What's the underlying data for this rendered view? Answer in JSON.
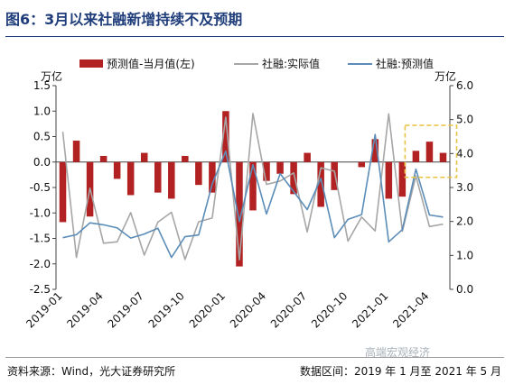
{
  "figure": {
    "title": "图6：3月以来社融新增持续不及预期",
    "source": "资料来源：Wind，光大证券研究所",
    "range": "数据区间：2019 年 1 月至 2021 年 5 月",
    "watermark": "高端宏观经济"
  },
  "chart_data": {
    "type": "bar+line",
    "categories": [
      "2019-01",
      "2019-02",
      "2019-03",
      "2019-04",
      "2019-05",
      "2019-06",
      "2019-07",
      "2019-08",
      "2019-09",
      "2019-10",
      "2019-11",
      "2019-12",
      "2020-01",
      "2020-02",
      "2020-03",
      "2020-04",
      "2020-05",
      "2020-06",
      "2020-07",
      "2020-08",
      "2020-09",
      "2020-10",
      "2020-11",
      "2020-12",
      "2021-01",
      "2021-02",
      "2021-03",
      "2021-04",
      "2021-05"
    ],
    "x_tick_labels": [
      "2019-01",
      "2019-04",
      "2019-07",
      "2019-10",
      "2020-01",
      "2020-04",
      "2020-07",
      "2020-10",
      "2021-01",
      "2021-04"
    ],
    "series": [
      {
        "name": "预测值-当月值(左)",
        "kind": "bar",
        "axis": "left",
        "color": "#b22222",
        "values": [
          -1.18,
          0.42,
          -1.07,
          0.12,
          -0.33,
          -0.65,
          0.18,
          -0.6,
          -0.72,
          0.12,
          -0.45,
          -0.6,
          1.0,
          -2.05,
          -0.95,
          -0.37,
          -0.23,
          -0.63,
          0.18,
          -0.88,
          -0.55,
          0.0,
          -0.1,
          0.45,
          -0.72,
          -0.68,
          0.22,
          0.4,
          0.18
        ]
      },
      {
        "name": "社融:实际值",
        "kind": "line",
        "axis": "right",
        "color": "#a6a6a6",
        "values": [
          4.64,
          0.94,
          2.98,
          1.36,
          1.4,
          2.26,
          1.01,
          1.98,
          2.27,
          0.88,
          1.99,
          2.1,
          5.07,
          0.87,
          5.18,
          3.09,
          3.19,
          3.43,
          1.69,
          3.58,
          3.48,
          1.42,
          2.13,
          1.72,
          5.17,
          1.71,
          3.34,
          1.85,
          1.92
        ]
      },
      {
        "name": "社融:预测值",
        "kind": "line",
        "axis": "right",
        "color": "#5b8db8",
        "values": [
          1.52,
          1.61,
          1.96,
          1.9,
          1.81,
          1.51,
          1.63,
          1.8,
          0.94,
          1.55,
          1.6,
          3.1,
          4.07,
          2.0,
          3.67,
          2.22,
          3.41,
          2.88,
          2.35,
          3.27,
          1.52,
          2.06,
          2.2,
          4.56,
          1.4,
          1.76,
          3.54,
          2.19,
          2.13
        ]
      }
    ],
    "left_axis": {
      "unit": "万亿",
      "min": -2.5,
      "max": 1.5,
      "ticks": [
        -2.5,
        -2.0,
        -1.5,
        -1.0,
        -0.5,
        0.0,
        0.5,
        1.0,
        1.5
      ]
    },
    "right_axis": {
      "unit": "万亿",
      "min": 0.0,
      "max": 6.0,
      "ticks": [
        0.0,
        1.0,
        2.0,
        3.0,
        4.0,
        5.0,
        6.0
      ]
    },
    "grid": false,
    "legend": "top",
    "annotation": {
      "kind": "dashed-box",
      "color": "#e8c547",
      "from": "2021-03",
      "to": "2021-05",
      "left_range": [
        -0.3,
        0.72
      ]
    }
  }
}
